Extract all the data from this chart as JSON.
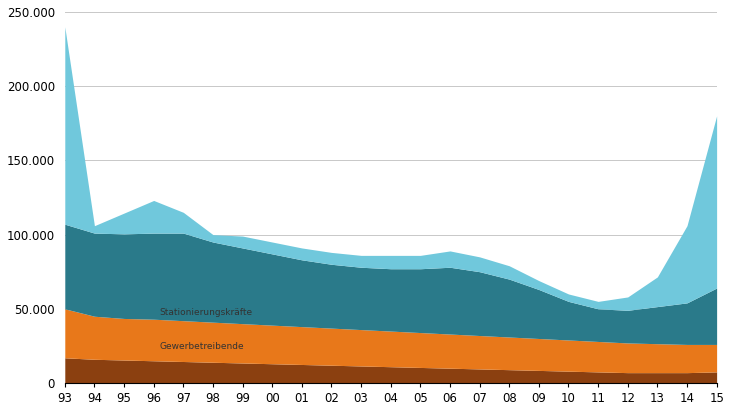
{
  "year_labels": [
    "93",
    "94",
    "95",
    "96",
    "97",
    "98",
    "99",
    "00",
    "01",
    "02",
    "03",
    "04",
    "05",
    "06",
    "07",
    "08",
    "09",
    "10",
    "11",
    "12",
    "13",
    "14",
    "15"
  ],
  "layer1_brown": [
    17000,
    16000,
    15500,
    15000,
    14500,
    14000,
    13500,
    13000,
    12500,
    12000,
    11500,
    11000,
    10500,
    10000,
    9500,
    9000,
    8500,
    8000,
    7500,
    7000,
    7000,
    7000,
    7500
  ],
  "layer2_orange": [
    33000,
    29000,
    28000,
    28000,
    27500,
    27000,
    26500,
    26000,
    25500,
    25000,
    24500,
    24000,
    23500,
    23000,
    22500,
    22000,
    21500,
    21000,
    20500,
    20000,
    19500,
    19000,
    18500
  ],
  "layer3_teal": [
    57000,
    56000,
    57000,
    58000,
    59000,
    54000,
    51000,
    48000,
    45000,
    43000,
    42000,
    42000,
    43000,
    45000,
    43000,
    39000,
    33000,
    26000,
    22000,
    22000,
    25000,
    28000,
    38000
  ],
  "layer4_lightblue": [
    133000,
    5000,
    14000,
    22000,
    14000,
    5000,
    8000,
    8000,
    8000,
    8000,
    8000,
    9000,
    9000,
    11000,
    10000,
    9000,
    6000,
    5000,
    5000,
    9000,
    20000,
    52000,
    116000
  ],
  "color1": "#8B4010",
  "color2": "#E8781A",
  "color3": "#2A7A8A",
  "color4": "#70C8DC",
  "label1": "Gewerbetreibende",
  "label2": "Stationierungskräfte",
  "ylim": [
    0,
    250000
  ],
  "yticks": [
    0,
    50000,
    100000,
    150000,
    200000,
    250000
  ],
  "ytick_labels": [
    "0",
    "50.000",
    "100.000",
    "150.000",
    "200.000",
    "250.000"
  ],
  "background_color": "#ffffff",
  "grid_color": "#c8c8c8"
}
